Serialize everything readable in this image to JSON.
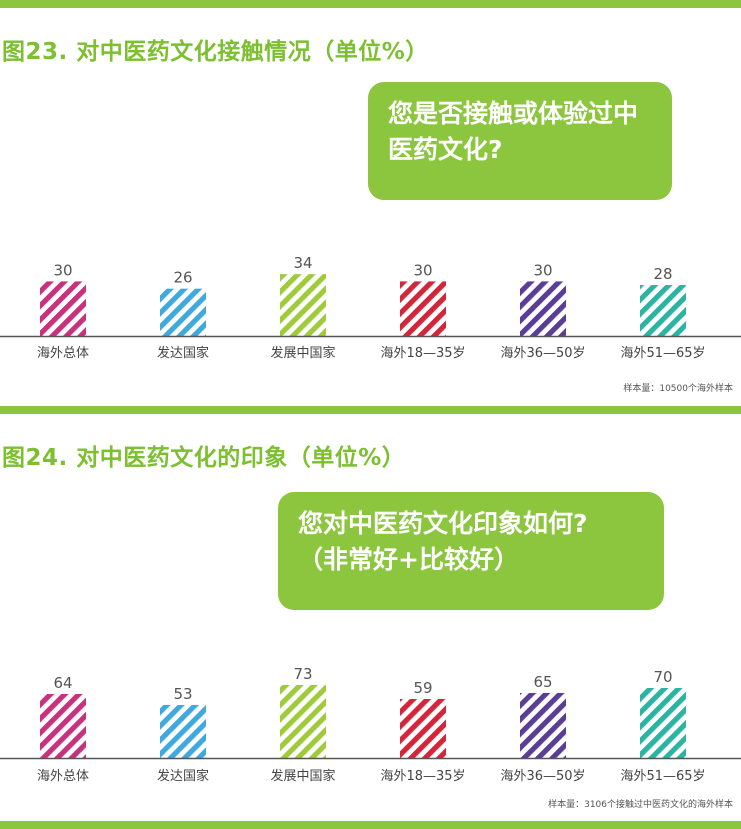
{
  "colors": {
    "accent_green": "#8cc63f",
    "series_colors": [
      "#c8317e",
      "#3fa9dd",
      "#9fcb3b",
      "#d3263a",
      "#5a3e96",
      "#2bb3a3"
    ]
  },
  "chart_data": [
    {
      "type": "bar",
      "title": "图23. 对中医药文化接触情况（单位%）",
      "question": "您是否接触或体验过中医药文化?",
      "categories": [
        "海外总体",
        "发达国家",
        "发展中国家",
        "海外18—35岁",
        "海外36—50岁",
        "海外51—65岁"
      ],
      "values": [
        30,
        26,
        34,
        30,
        30,
        28
      ],
      "note": "样本量：10500个海外样本",
      "xlabel": "",
      "ylabel": ""
    },
    {
      "type": "bar",
      "title": "图24. 对中医药文化的印象（单位%）",
      "question": "您对中医药文化印象如何?（非常好+比较好）",
      "question_lines": [
        "您对中医药文化印象如何?",
        "（非常好+比较好）"
      ],
      "categories": [
        "海外总体",
        "发达国家",
        "发展中国家",
        "海外18—35岁",
        "海外36—50岁",
        "海外51—65岁"
      ],
      "values": [
        64,
        53,
        73,
        59,
        65,
        70
      ],
      "note": "样本量：3106个接触过中医药文化的海外样本",
      "xlabel": "",
      "ylabel": ""
    }
  ]
}
